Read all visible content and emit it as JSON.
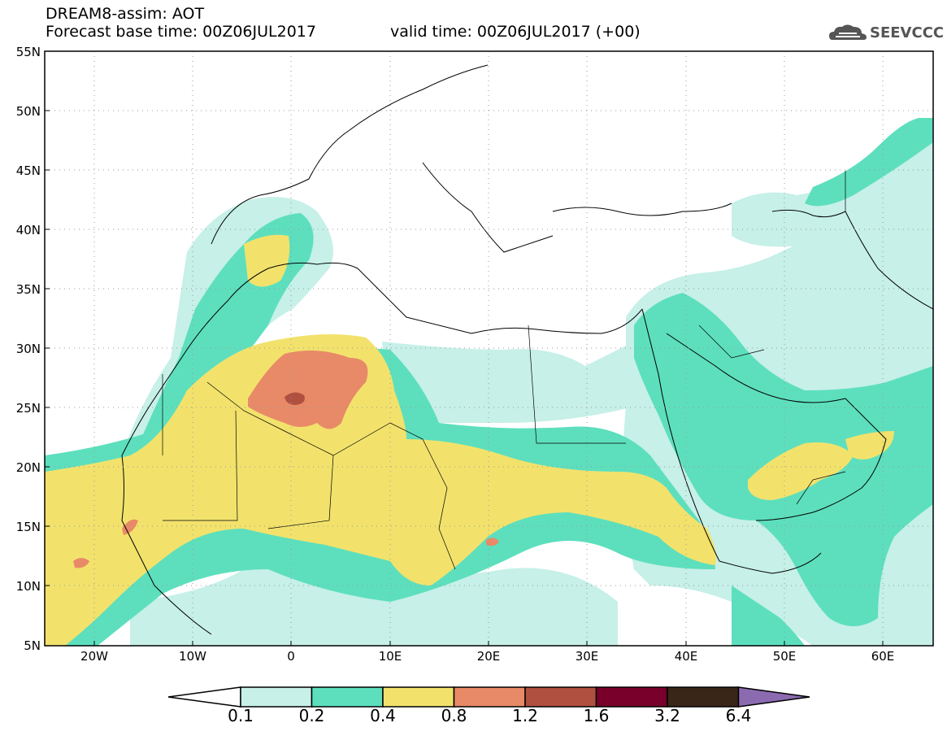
{
  "header": {
    "title": "DREAM8-assim: AOT",
    "forecast_base": "Forecast base time: 00Z06JUL2017",
    "valid_time": "valid time: 00Z06JUL2017 (+00)",
    "logo_text": "SEEVCCC"
  },
  "map": {
    "lon_range": [
      -25,
      65
    ],
    "lat_range": [
      5,
      55
    ],
    "lat_labels": [
      "55N",
      "50N",
      "45N",
      "40N",
      "35N",
      "30N",
      "25N",
      "20N",
      "15N",
      "10N",
      "5N"
    ],
    "lon_labels": [
      "20W",
      "10W",
      "0",
      "10E",
      "20E",
      "30E",
      "40E",
      "50E",
      "60E"
    ],
    "grid": "dotted",
    "quantity": "Aerosol Optical Thickness"
  },
  "colorbar": {
    "labels": [
      "0.1",
      "0.2",
      "0.4",
      "0.8",
      "1.2",
      "1.6",
      "3.2",
      "6.4"
    ],
    "colors": [
      "#ffffff",
      "#c6f0e8",
      "#5ddfbd",
      "#f2e26c",
      "#e88a67",
      "#b05040",
      "#78002a",
      "#3a2618",
      "#8c6ab0"
    ]
  }
}
